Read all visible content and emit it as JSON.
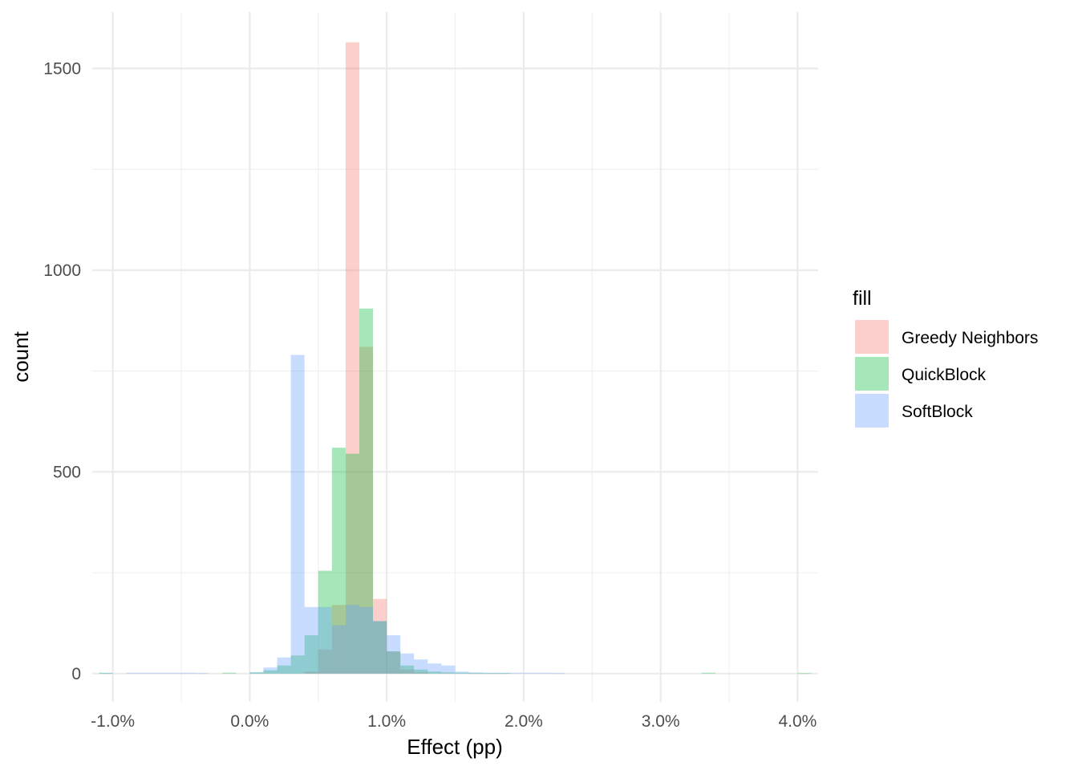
{
  "chart_data": {
    "type": "bar",
    "subtype": "overlaid-histogram",
    "title": "",
    "xlabel": "Effect (pp)",
    "ylabel": "count",
    "xlim": [
      -1.15,
      4.15
    ],
    "ylim": [
      -70,
      1640
    ],
    "x_ticks": [
      -1.0,
      0.0,
      1.0,
      2.0,
      3.0,
      4.0
    ],
    "x_tick_labels": [
      "-1.0%",
      "0.0%",
      "1.0%",
      "2.0%",
      "3.0%",
      "4.0%"
    ],
    "y_ticks": [
      0,
      500,
      1000,
      1500
    ],
    "y_tick_labels": [
      "0",
      "500",
      "1000",
      "1500"
    ],
    "bin_width": 0.1,
    "grid": true,
    "legend": {
      "title": "fill",
      "position": "right"
    },
    "series": [
      {
        "name": "Greedy Neighbors",
        "color": "#F8766D",
        "bins": [
          [
            0.45,
            5
          ],
          [
            0.55,
            60
          ],
          [
            0.65,
            170
          ],
          [
            0.75,
            1565
          ],
          [
            0.85,
            810
          ],
          [
            0.95,
            185
          ],
          [
            1.05,
            55
          ],
          [
            1.15,
            10
          ],
          [
            1.25,
            3
          ]
        ]
      },
      {
        "name": "QuickBlock",
        "color": "#00BA38",
        "bins": [
          [
            -1.05,
            1
          ],
          [
            -0.15,
            2
          ],
          [
            0.05,
            3
          ],
          [
            0.15,
            8
          ],
          [
            0.25,
            20
          ],
          [
            0.35,
            45
          ],
          [
            0.45,
            95
          ],
          [
            0.55,
            255
          ],
          [
            0.65,
            560
          ],
          [
            0.75,
            545
          ],
          [
            0.85,
            905
          ],
          [
            0.95,
            130
          ],
          [
            1.05,
            55
          ],
          [
            1.15,
            20
          ],
          [
            1.25,
            10
          ],
          [
            1.35,
            5
          ],
          [
            1.45,
            3
          ],
          [
            1.55,
            2
          ],
          [
            1.65,
            1
          ],
          [
            1.75,
            1
          ],
          [
            1.85,
            1
          ],
          [
            3.35,
            2
          ],
          [
            4.05,
            1
          ]
        ]
      },
      {
        "name": "SoftBlock",
        "color": "#619CFF",
        "bins": [
          [
            -1.05,
            2
          ],
          [
            -0.85,
            2
          ],
          [
            -0.75,
            2
          ],
          [
            -0.65,
            2
          ],
          [
            -0.55,
            2
          ],
          [
            -0.45,
            2
          ],
          [
            -0.35,
            1
          ],
          [
            0.05,
            3
          ],
          [
            0.15,
            15
          ],
          [
            0.25,
            40
          ],
          [
            0.35,
            790
          ],
          [
            0.45,
            165
          ],
          [
            0.55,
            165
          ],
          [
            0.65,
            120
          ],
          [
            0.75,
            170
          ],
          [
            0.85,
            165
          ],
          [
            0.95,
            130
          ],
          [
            1.05,
            95
          ],
          [
            1.15,
            50
          ],
          [
            1.25,
            35
          ],
          [
            1.35,
            25
          ],
          [
            1.45,
            20
          ],
          [
            1.55,
            5
          ],
          [
            1.65,
            3
          ],
          [
            1.75,
            2
          ],
          [
            1.85,
            2
          ],
          [
            1.95,
            2
          ],
          [
            2.05,
            2
          ],
          [
            2.15,
            2
          ],
          [
            2.25,
            1
          ]
        ]
      }
    ]
  }
}
